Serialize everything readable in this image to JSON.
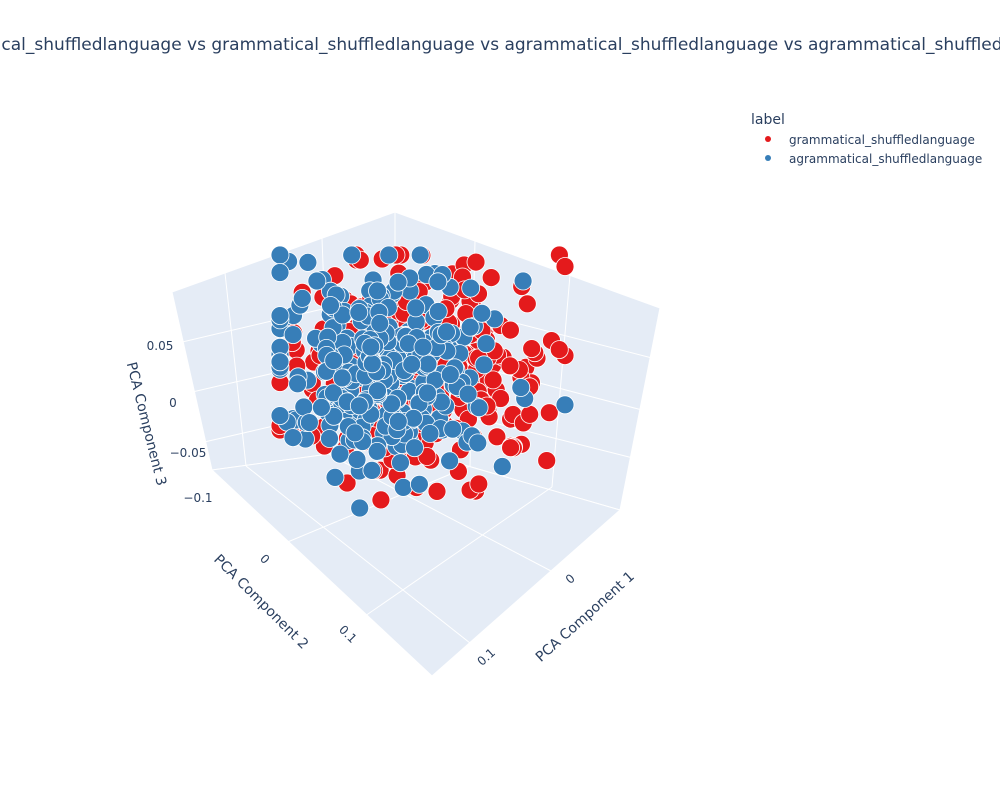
{
  "chart_data": {
    "type": "scatter",
    "title": "grammatical_shuffledlanguage vs grammatical_shuffledlanguage vs agrammatical_shuffledlanguage vs agrammatical_shuffledlanguage",
    "legend_title": "label",
    "legend_position": "top-right",
    "axes": {
      "x": {
        "title": "PCA Component 1",
        "ticks": [
          "0",
          "0.1"
        ]
      },
      "y": {
        "title": "PCA Component 2",
        "ticks": [
          "0",
          "0.1"
        ]
      },
      "z": {
        "title": "PCA Component 3",
        "ticks": [
          "0.05",
          "0",
          "−0.05",
          "−0.1"
        ]
      }
    },
    "grid": true,
    "series": [
      {
        "name": "grammatical_shuffledlanguage",
        "color": "#e41a1c",
        "count": 320
      },
      {
        "name": "agrammatical_shuffledlanguage",
        "color": "#377eb8",
        "count": 320
      }
    ]
  }
}
